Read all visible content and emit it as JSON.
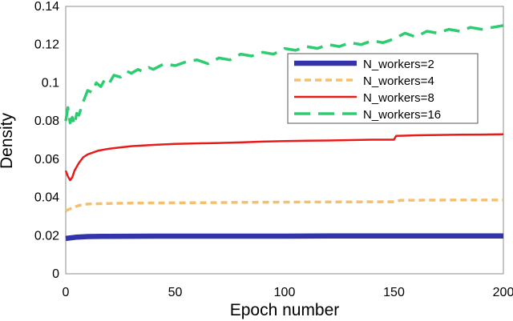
{
  "chart_data": {
    "type": "line",
    "xlabel": "Epoch number",
    "ylabel": "Density",
    "xlim": [
      0,
      200
    ],
    "ylim": [
      0,
      0.14
    ],
    "x_ticks": [
      0,
      50,
      100,
      150,
      200
    ],
    "x_tick_labels": [
      "0",
      "50",
      "100",
      "150",
      "200"
    ],
    "y_ticks": [
      0,
      0.02,
      0.04,
      0.06,
      0.08,
      0.1,
      0.12,
      0.14
    ],
    "y_tick_labels": [
      "0",
      "0.02",
      "0.04",
      "0.06",
      "0.08",
      "0.1",
      "0.12",
      "0.14"
    ],
    "grid": false,
    "legend_position": "upper-right",
    "series": [
      {
        "name": "N_workers=2",
        "color": "#3333aa",
        "style": "solid-thick",
        "x": [
          0,
          5,
          10,
          20,
          40,
          60,
          80,
          100,
          120,
          150,
          175,
          200
        ],
        "values": [
          0.0185,
          0.0192,
          0.0195,
          0.0196,
          0.0197,
          0.0197,
          0.0197,
          0.0197,
          0.0198,
          0.0198,
          0.0198,
          0.0198
        ]
      },
      {
        "name": "N_workers=4",
        "color": "#f5c06c",
        "style": "dashed",
        "x": [
          0,
          3,
          6,
          10,
          20,
          30,
          40,
          60,
          80,
          100,
          120,
          150,
          153,
          175,
          200
        ],
        "values": [
          0.033,
          0.0345,
          0.0358,
          0.0365,
          0.0368,
          0.037,
          0.0371,
          0.0372,
          0.0374,
          0.0375,
          0.0376,
          0.0377,
          0.0385,
          0.0386,
          0.0386
        ]
      },
      {
        "name": "N_workers=8",
        "color": "#e81b1b",
        "style": "solid",
        "x": [
          0,
          1,
          2,
          3,
          4,
          6,
          8,
          10,
          15,
          20,
          25,
          30,
          40,
          50,
          60,
          70,
          80,
          90,
          100,
          110,
          120,
          130,
          140,
          150,
          151,
          160,
          170,
          180,
          190,
          200
        ],
        "values": [
          0.054,
          0.051,
          0.049,
          0.0505,
          0.054,
          0.058,
          0.061,
          0.0625,
          0.0645,
          0.0655,
          0.0662,
          0.0668,
          0.0675,
          0.068,
          0.0683,
          0.0685,
          0.0688,
          0.0692,
          0.0695,
          0.0697,
          0.0698,
          0.07,
          0.0702,
          0.0702,
          0.0722,
          0.0725,
          0.0727,
          0.0728,
          0.0729,
          0.073
        ]
      },
      {
        "name": "N_workers=16",
        "color": "#2ecc71",
        "style": "long-dash",
        "x": [
          0,
          1,
          2,
          3,
          4,
          5,
          6,
          8,
          10,
          12,
          14,
          16,
          18,
          20,
          22,
          25,
          28,
          30,
          33,
          35,
          38,
          40,
          45,
          50,
          55,
          60,
          65,
          70,
          75,
          80,
          85,
          90,
          95,
          100,
          105,
          110,
          115,
          120,
          125,
          130,
          135,
          140,
          145,
          150,
          155,
          160,
          165,
          170,
          175,
          180,
          185,
          190,
          195,
          200
        ],
        "values": [
          0.08,
          0.087,
          0.079,
          0.082,
          0.078,
          0.084,
          0.083,
          0.09,
          0.096,
          0.095,
          0.1,
          0.098,
          0.102,
          0.1,
          0.104,
          0.103,
          0.106,
          0.105,
          0.107,
          0.106,
          0.108,
          0.107,
          0.11,
          0.109,
          0.111,
          0.112,
          0.11,
          0.113,
          0.112,
          0.115,
          0.114,
          0.116,
          0.115,
          0.118,
          0.117,
          0.119,
          0.118,
          0.12,
          0.119,
          0.121,
          0.12,
          0.122,
          0.121,
          0.123,
          0.126,
          0.124,
          0.127,
          0.126,
          0.128,
          0.127,
          0.129,
          0.128,
          0.129,
          0.13
        ]
      }
    ]
  }
}
